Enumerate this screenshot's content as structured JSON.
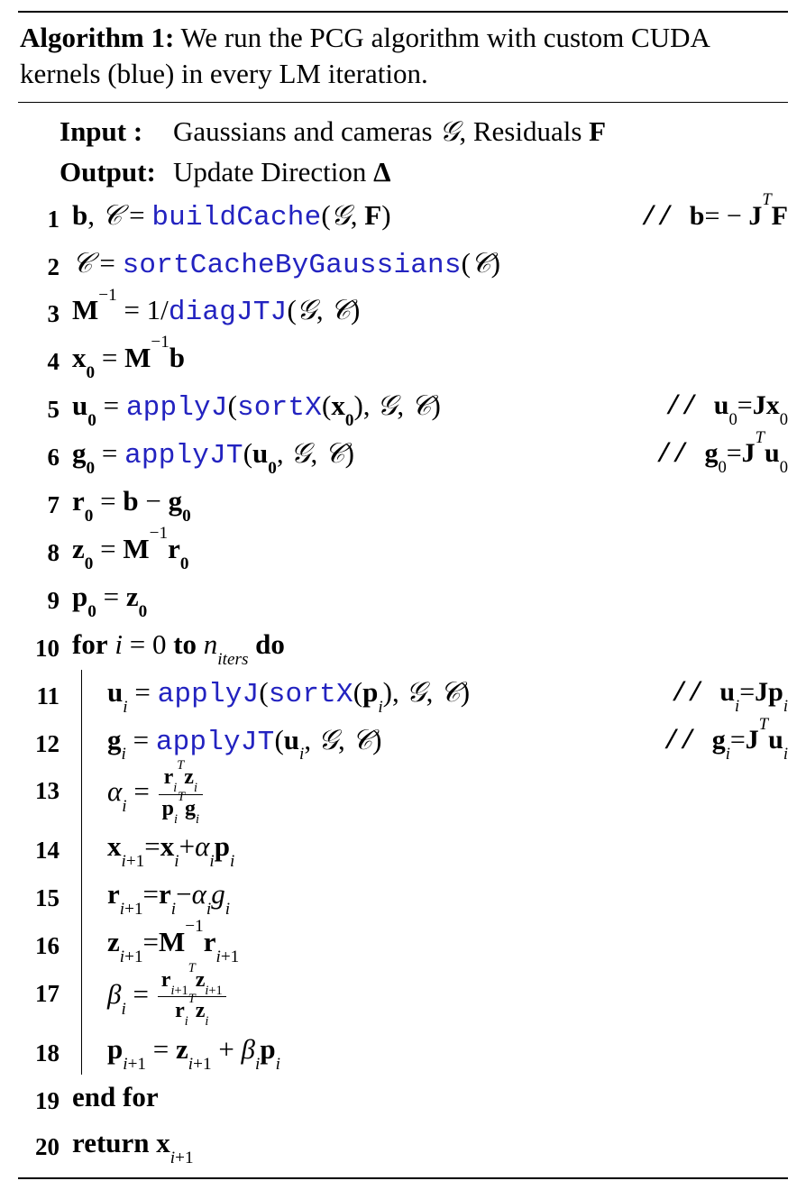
{
  "caption": {
    "label": "Algorithm 1:",
    "text": " We run the PCG algorithm with custom CUDA kernels (blue) in every LM iteration."
  },
  "io": {
    "input_label": "Input  :",
    "input_text_pre": "Gaussians and cameras ",
    "input_sym1": "𝒢",
    "input_mid": ", Residuals ",
    "input_sym2": "F",
    "output_label": "Output:",
    "output_text": "Update Direction ",
    "output_sym": "Δ"
  },
  "kernels": {
    "buildCache": "buildCache",
    "sortCacheByGaussians": "sortCacheByGaussians",
    "diagJTJ": "diagJTJ",
    "applyJ": "applyJ",
    "sortX": "sortX",
    "applyJT": "applyJT"
  },
  "kw": {
    "for": "for",
    "to": "to",
    "do": "do",
    "endfor": "end for",
    "ret": "return"
  },
  "comments": {
    "c1_pre": "// ",
    "c1": "b= − J",
    "c1_T": "T",
    "c1_post": "F",
    "c5_pre": "// ",
    "c5": "u",
    "c5_sub": "0",
    "c5_eq": "=J",
    "c5_x": "x",
    "c5_xsub": "0",
    "c6_pre": "// ",
    "c6": "g",
    "c6_sub": "0",
    "c6_eq": "=J",
    "c6_T": "T",
    "c6_u": "u",
    "c6_usub": "0",
    "c11_pre": "// ",
    "c11": "u",
    "c11_sub": "i",
    "c11_eq": "=J",
    "c11_p": "p",
    "c11_psub": "i",
    "c12_pre": "// ",
    "c12": "g",
    "c12_sub": "i",
    "c12_eq": "=J",
    "c12_T": "T",
    "c12_u": "u",
    "c12_usub": "i"
  },
  "colors": {
    "kernel": "#2323c0",
    "text": "#000000",
    "bg": "#ffffff"
  },
  "fontsize": {
    "body": 31,
    "lineno": 27,
    "frac": 24
  },
  "nums": {
    "1": "1",
    "2": "2",
    "3": "3",
    "4": "4",
    "5": "5",
    "6": "6",
    "7": "7",
    "8": "8",
    "9": "9",
    "10": "10",
    "11": "11",
    "12": "12",
    "13": "13",
    "14": "14",
    "15": "15",
    "16": "16",
    "17": "17",
    "18": "18",
    "19": "19",
    "20": "20"
  }
}
